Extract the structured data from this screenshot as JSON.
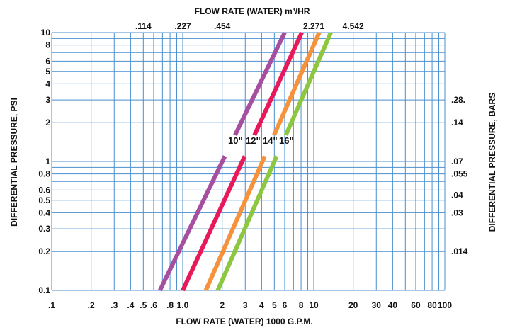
{
  "chart_data": {
    "type": "line",
    "title": "",
    "x_scale": "log",
    "y_scale": "log",
    "xlim": [
      0.1,
      100
    ],
    "ylim": [
      0.1,
      10
    ],
    "grid": true,
    "xlabel": "FLOW RATE (WATER) 1000 G.P.M.",
    "ylabel": "DIFFERENTIAL PRESSURE, PSI",
    "top_axis_label": "FLOW RATE (WATER) m³/HR",
    "right_axis_label": "DIFFERENTIAL PRESSURE, BARS",
    "x_ticks": [
      {
        "value": 0.1,
        "label": ".1"
      },
      {
        "value": 0.2,
        "label": ".2"
      },
      {
        "value": 0.3,
        "label": ".3"
      },
      {
        "value": 0.4,
        "label": ".4"
      },
      {
        "value": 0.5,
        "label": ".5"
      },
      {
        "value": 0.6,
        "label": ".6"
      },
      {
        "value": 0.8,
        "label": ".8"
      },
      {
        "value": 1.0,
        "label": "1.0"
      },
      {
        "value": 2,
        "label": "2"
      },
      {
        "value": 3,
        "label": "3"
      },
      {
        "value": 4,
        "label": "4"
      },
      {
        "value": 5,
        "label": "5"
      },
      {
        "value": 6,
        "label": "6"
      },
      {
        "value": 8,
        "label": "8"
      },
      {
        "value": 10,
        "label": "10"
      },
      {
        "value": 20,
        "label": "20"
      },
      {
        "value": 30,
        "label": "30"
      },
      {
        "value": 40,
        "label": "40"
      },
      {
        "value": 60,
        "label": "60"
      },
      {
        "value": 80,
        "label": "80"
      },
      {
        "value": 100,
        "label": "100"
      }
    ],
    "y_ticks": [
      {
        "value": 0.1,
        "label": "0.1"
      },
      {
        "value": 0.2,
        "label": "0.2"
      },
      {
        "value": 0.3,
        "label": "0.3"
      },
      {
        "value": 0.4,
        "label": "0.4"
      },
      {
        "value": 0.5,
        "label": "0.5"
      },
      {
        "value": 0.6,
        "label": "0.6"
      },
      {
        "value": 0.8,
        "label": "0.8"
      },
      {
        "value": 1,
        "label": "1"
      },
      {
        "value": 2,
        "label": "2"
      },
      {
        "value": 3,
        "label": "3"
      },
      {
        "value": 4,
        "label": "4"
      },
      {
        "value": 5,
        "label": "5"
      },
      {
        "value": 6,
        "label": "6"
      },
      {
        "value": 8,
        "label": "8"
      },
      {
        "value": 10,
        "label": "10"
      }
    ],
    "top_ticks": [
      {
        "at_gpm_k": 0.5,
        "label": ".114"
      },
      {
        "at_gpm_k": 1.0,
        "label": ".227"
      },
      {
        "at_gpm_k": 2.0,
        "label": ".454"
      },
      {
        "at_gpm_k": 10,
        "label": "2.271"
      },
      {
        "at_gpm_k": 20,
        "label": "4.542"
      }
    ],
    "right_ticks": [
      {
        "at_psi": 3,
        "label": ".28."
      },
      {
        "at_psi": 2,
        "label": ".14"
      },
      {
        "at_psi": 1,
        "label": ".07"
      },
      {
        "at_psi": 0.8,
        "label": ".055"
      },
      {
        "at_psi": 0.55,
        "label": ".04"
      },
      {
        "at_psi": 0.4,
        "label": ".03"
      },
      {
        "at_psi": 0.2,
        "label": ".014"
      }
    ],
    "series": [
      {
        "name": "10\"",
        "color": "#a64ea0",
        "points": [
          [
            0.67,
            0.1
          ],
          [
            6.0,
            10
          ]
        ],
        "gap_y": [
          1.1,
          1.6
        ]
      },
      {
        "name": "12\"",
        "color": "#e8195a",
        "points": [
          [
            1.0,
            0.1
          ],
          [
            8.1,
            10
          ]
        ],
        "gap_y": [
          1.1,
          1.6
        ]
      },
      {
        "name": "14\"",
        "color": "#f5923b",
        "points": [
          [
            1.5,
            0.1
          ],
          [
            11.0,
            10
          ]
        ],
        "gap_y": [
          1.1,
          1.6
        ]
      },
      {
        "name": "16\"",
        "color": "#8dc63f",
        "points": [
          [
            1.85,
            0.1
          ],
          [
            13.5,
            10
          ]
        ],
        "gap_y": [
          1.1,
          1.6
        ]
      }
    ]
  }
}
